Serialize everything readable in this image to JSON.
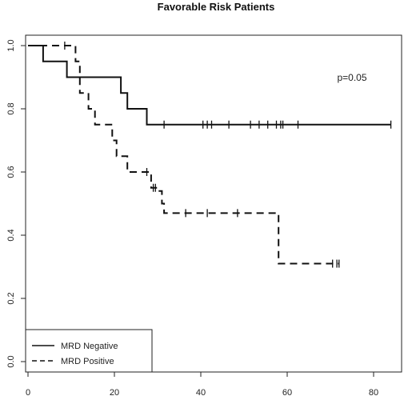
{
  "chart_data": {
    "type": "line",
    "title": "Favorable Risk Patients",
    "xlabel": "",
    "ylabel": "",
    "xlim": [
      0,
      85
    ],
    "ylim": [
      0,
      1.02
    ],
    "x_ticks": [
      0,
      20,
      40,
      60,
      80
    ],
    "y_ticks": [
      0.0,
      0.2,
      0.4,
      0.6,
      0.8,
      1.0
    ],
    "x_tick_labels": [
      "0",
      "20",
      "40",
      "60",
      "80"
    ],
    "y_tick_labels": [
      "0.0",
      "0.2",
      "0.4",
      "0.6",
      "0.8",
      "1.0"
    ],
    "grid": false,
    "legend_position": "bottom-left",
    "annotation": "p=0.05",
    "series": [
      {
        "name": "MRD Negative",
        "style": "solid",
        "steps": [
          [
            0,
            1.0
          ],
          [
            3.5,
            0.95
          ],
          [
            9,
            0.9
          ],
          [
            21.5,
            0.85
          ],
          [
            23,
            0.8
          ],
          [
            27.5,
            0.75
          ],
          [
            84,
            0.75
          ]
        ],
        "censor_x": [
          31.5,
          40.5,
          41.5,
          42.5,
          46.5,
          51.5,
          53.5,
          55.5,
          57.5,
          58.5,
          59,
          62.5,
          84
        ]
      },
      {
        "name": "MRD Positive",
        "style": "dashed",
        "steps": [
          [
            0,
            1.0
          ],
          [
            11,
            0.95
          ],
          [
            12,
            0.85
          ],
          [
            14,
            0.8
          ],
          [
            15.5,
            0.75
          ],
          [
            19.5,
            0.7
          ],
          [
            20.5,
            0.65
          ],
          [
            23,
            0.6
          ],
          [
            28.5,
            0.55
          ],
          [
            30,
            0.54
          ],
          [
            31,
            0.5
          ],
          [
            31.5,
            0.47
          ],
          [
            57.5,
            0.47
          ],
          [
            58,
            0.31
          ],
          [
            72,
            0.31
          ]
        ],
        "censor_x": [
          8.5,
          27.5,
          29,
          29.5,
          36.5,
          41.5,
          48.5,
          70.5,
          71.5,
          72
        ]
      }
    ]
  }
}
